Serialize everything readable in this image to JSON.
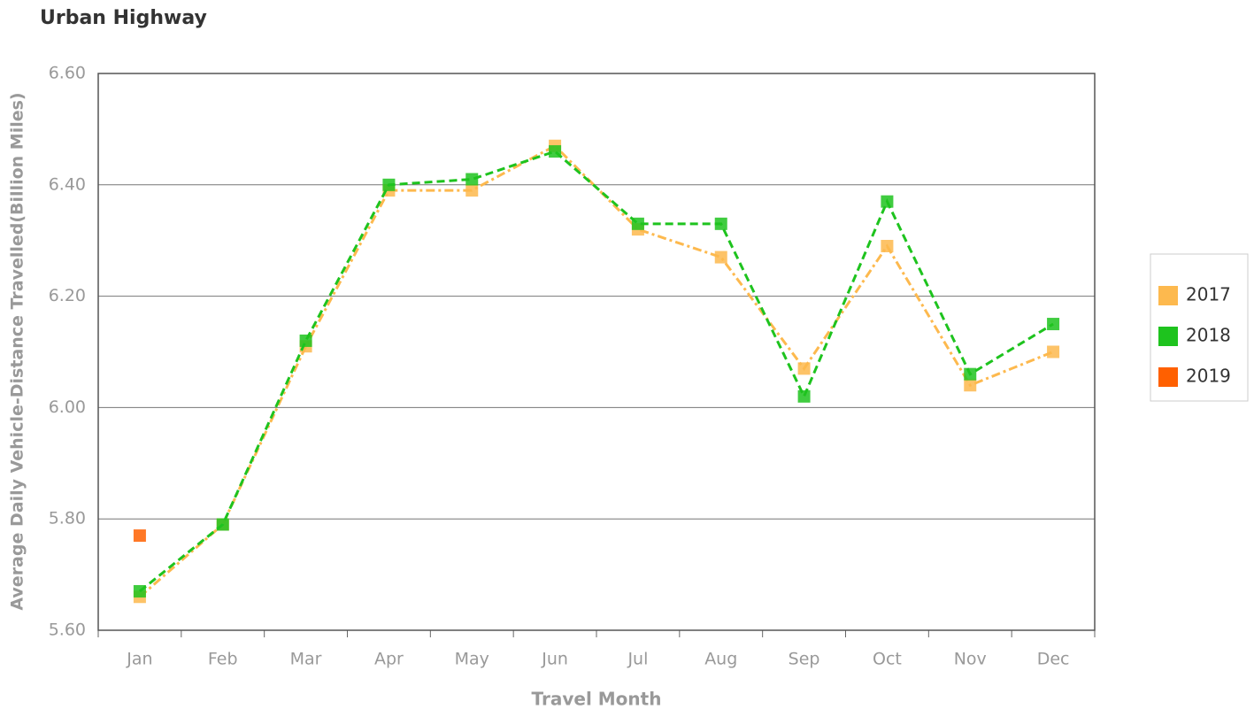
{
  "chart_data": {
    "type": "line",
    "title": "Urban Highway",
    "x_label": "Travel Month",
    "y_label": "Average Daily Vehicle-Distance Travelled(Billion Miles)",
    "categories": [
      "Jan",
      "Feb",
      "Mar",
      "Apr",
      "May",
      "Jun",
      "Jul",
      "Aug",
      "Sep",
      "Oct",
      "Nov",
      "Dec"
    ],
    "series": [
      {
        "name": "2017",
        "color": "#fdb94e",
        "line_style": "dashdot",
        "values": [
          5.66,
          5.79,
          6.11,
          6.39,
          6.39,
          6.47,
          6.32,
          6.27,
          6.07,
          6.29,
          6.04,
          6.1
        ]
      },
      {
        "name": "2018",
        "color": "#1ec31e",
        "line_style": "dashed",
        "values": [
          5.67,
          5.79,
          6.12,
          6.4,
          6.41,
          6.46,
          6.33,
          6.33,
          6.02,
          6.37,
          6.06,
          6.15
        ]
      },
      {
        "name": "2019",
        "color": "#ff6000",
        "line_style": "dashed",
        "values": [
          5.77,
          null,
          null,
          null,
          null,
          null,
          null,
          null,
          null,
          null,
          null,
          null
        ]
      }
    ],
    "ylim": [
      5.6,
      6.6
    ],
    "yticks": [
      {
        "value": 5.6,
        "label": "5.60"
      },
      {
        "value": 5.8,
        "label": "5.80"
      },
      {
        "value": 6.0,
        "label": "6.00"
      },
      {
        "value": 6.2,
        "label": "6.20"
      },
      {
        "value": 6.4,
        "label": "6.40"
      },
      {
        "value": 6.6,
        "label": "6.60"
      }
    ],
    "grid": true,
    "legend": "right"
  }
}
